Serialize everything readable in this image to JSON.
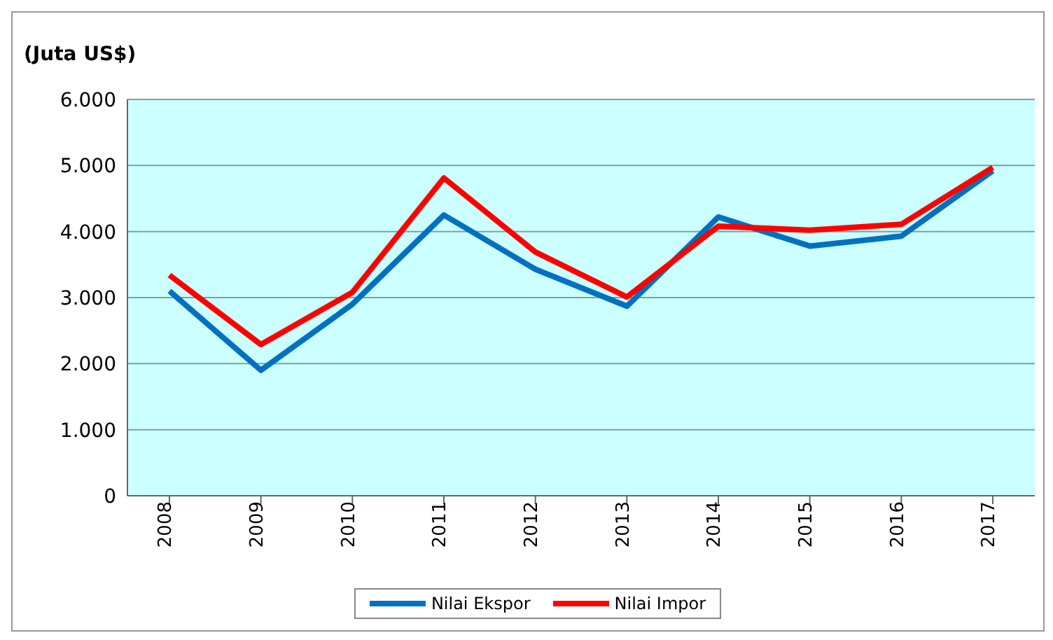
{
  "chart_data": {
    "type": "line",
    "ylabel": "(Juta US$)",
    "categories": [
      "2008",
      "2009",
      "2010",
      "2011",
      "2012",
      "2013",
      "2014",
      "2015",
      "2016",
      "2017"
    ],
    "series": [
      {
        "name": "Nilai Ekspor",
        "color": "#0070c0",
        "values": [
          3100,
          1900,
          2900,
          4250,
          3430,
          2870,
          4220,
          3780,
          3930,
          4920
        ]
      },
      {
        "name": "Nilai Impor",
        "color": "#ff0000",
        "values": [
          3340,
          2290,
          3080,
          4810,
          3690,
          3010,
          4080,
          4020,
          4110,
          4970
        ]
      }
    ],
    "ylim": [
      0,
      6000
    ],
    "yticks": [
      0,
      {
        "value": 1000,
        "label": "1.000"
      },
      {
        "value": 2000,
        "label": "2.000"
      },
      {
        "value": 3000,
        "label": "3.000"
      },
      {
        "value": 4000,
        "label": "4.000"
      },
      {
        "value": 5000,
        "label": "5.000"
      },
      {
        "value": 6000,
        "label": "6.000"
      }
    ],
    "grid": "y",
    "legend": "bottom",
    "marker": "none",
    "line_style": "solid"
  }
}
